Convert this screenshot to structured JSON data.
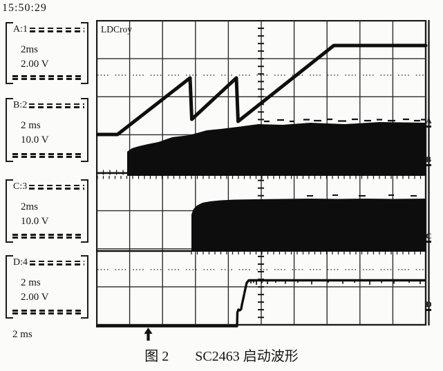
{
  "timestamp": "15:50:29",
  "brand_label": "LDCroy",
  "channels": [
    {
      "id": "A:1",
      "timebase": "2ms",
      "volts_div": "2.00 V",
      "marker": "A"
    },
    {
      "id": "B:2",
      "timebase": "2 ms",
      "volts_div": "10.0 V",
      "marker": "B"
    },
    {
      "id": "C:3",
      "timebase": "2ms",
      "volts_div": "10.0 V",
      "marker": "C"
    },
    {
      "id": "D:4",
      "timebase": "2 ms",
      "volts_div": "2.00 V",
      "marker": "D"
    }
  ],
  "timebase_footer": "2 ms",
  "caption": {
    "figure_label": "图 2",
    "title": "SC2463 启动波形"
  },
  "colors": {
    "ink": "#151515",
    "background": "#fbfbf9"
  },
  "icons": {
    "trigger": "up-arrow-icon"
  },
  "waveforms": [
    {
      "channel": "A",
      "shape": "three rising sawtooth ramps, then levels to a flat top"
    },
    {
      "channel": "B",
      "shape": "flat baseline, then dense black switching band widening to full width"
    },
    {
      "channel": "C",
      "shape": "flat baseline, dense black switching band starting near screen center"
    },
    {
      "channel": "D",
      "shape": "low flat line, step up just left of center, then high flat line"
    }
  ]
}
